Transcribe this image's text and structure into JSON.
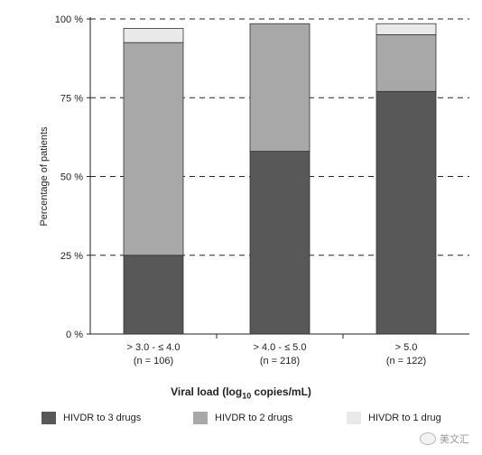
{
  "chart_data": {
    "type": "bar",
    "stacked": true,
    "categories": [
      {
        "line1": "> 3.0 - ≤ 4.0",
        "line2": "(n = 106)"
      },
      {
        "line1": "> 4.0 - ≤ 5.0",
        "line2": "(n = 218)"
      },
      {
        "line1": "> 5.0",
        "line2": "(n = 122)"
      }
    ],
    "series": [
      {
        "name": "HIVDR to 3 drugs",
        "color": "#585858",
        "values": [
          25,
          58,
          77
        ]
      },
      {
        "name": "HIVDR to 2 drugs",
        "color": "#a8a8a8",
        "values": [
          67.5,
          40.5,
          18
        ]
      },
      {
        "name": "HIVDR to 1 drug",
        "color": "#e9e9e9",
        "values": [
          4.5,
          0,
          3.5
        ]
      }
    ],
    "ylabel": "Percentage of patients",
    "xlabel_prefix": "Viral load (log",
    "xlabel_sub": "10",
    "xlabel_suffix": " copies/mL)",
    "ylim": [
      0,
      100
    ],
    "yticks": [
      0,
      25,
      50,
      75,
      100
    ],
    "ytick_suffix": " %",
    "grid": "dashed-horizontal",
    "legend_position": "bottom"
  },
  "watermark": {
    "text": "美文汇",
    "icon": "chat-bubble-icon"
  }
}
